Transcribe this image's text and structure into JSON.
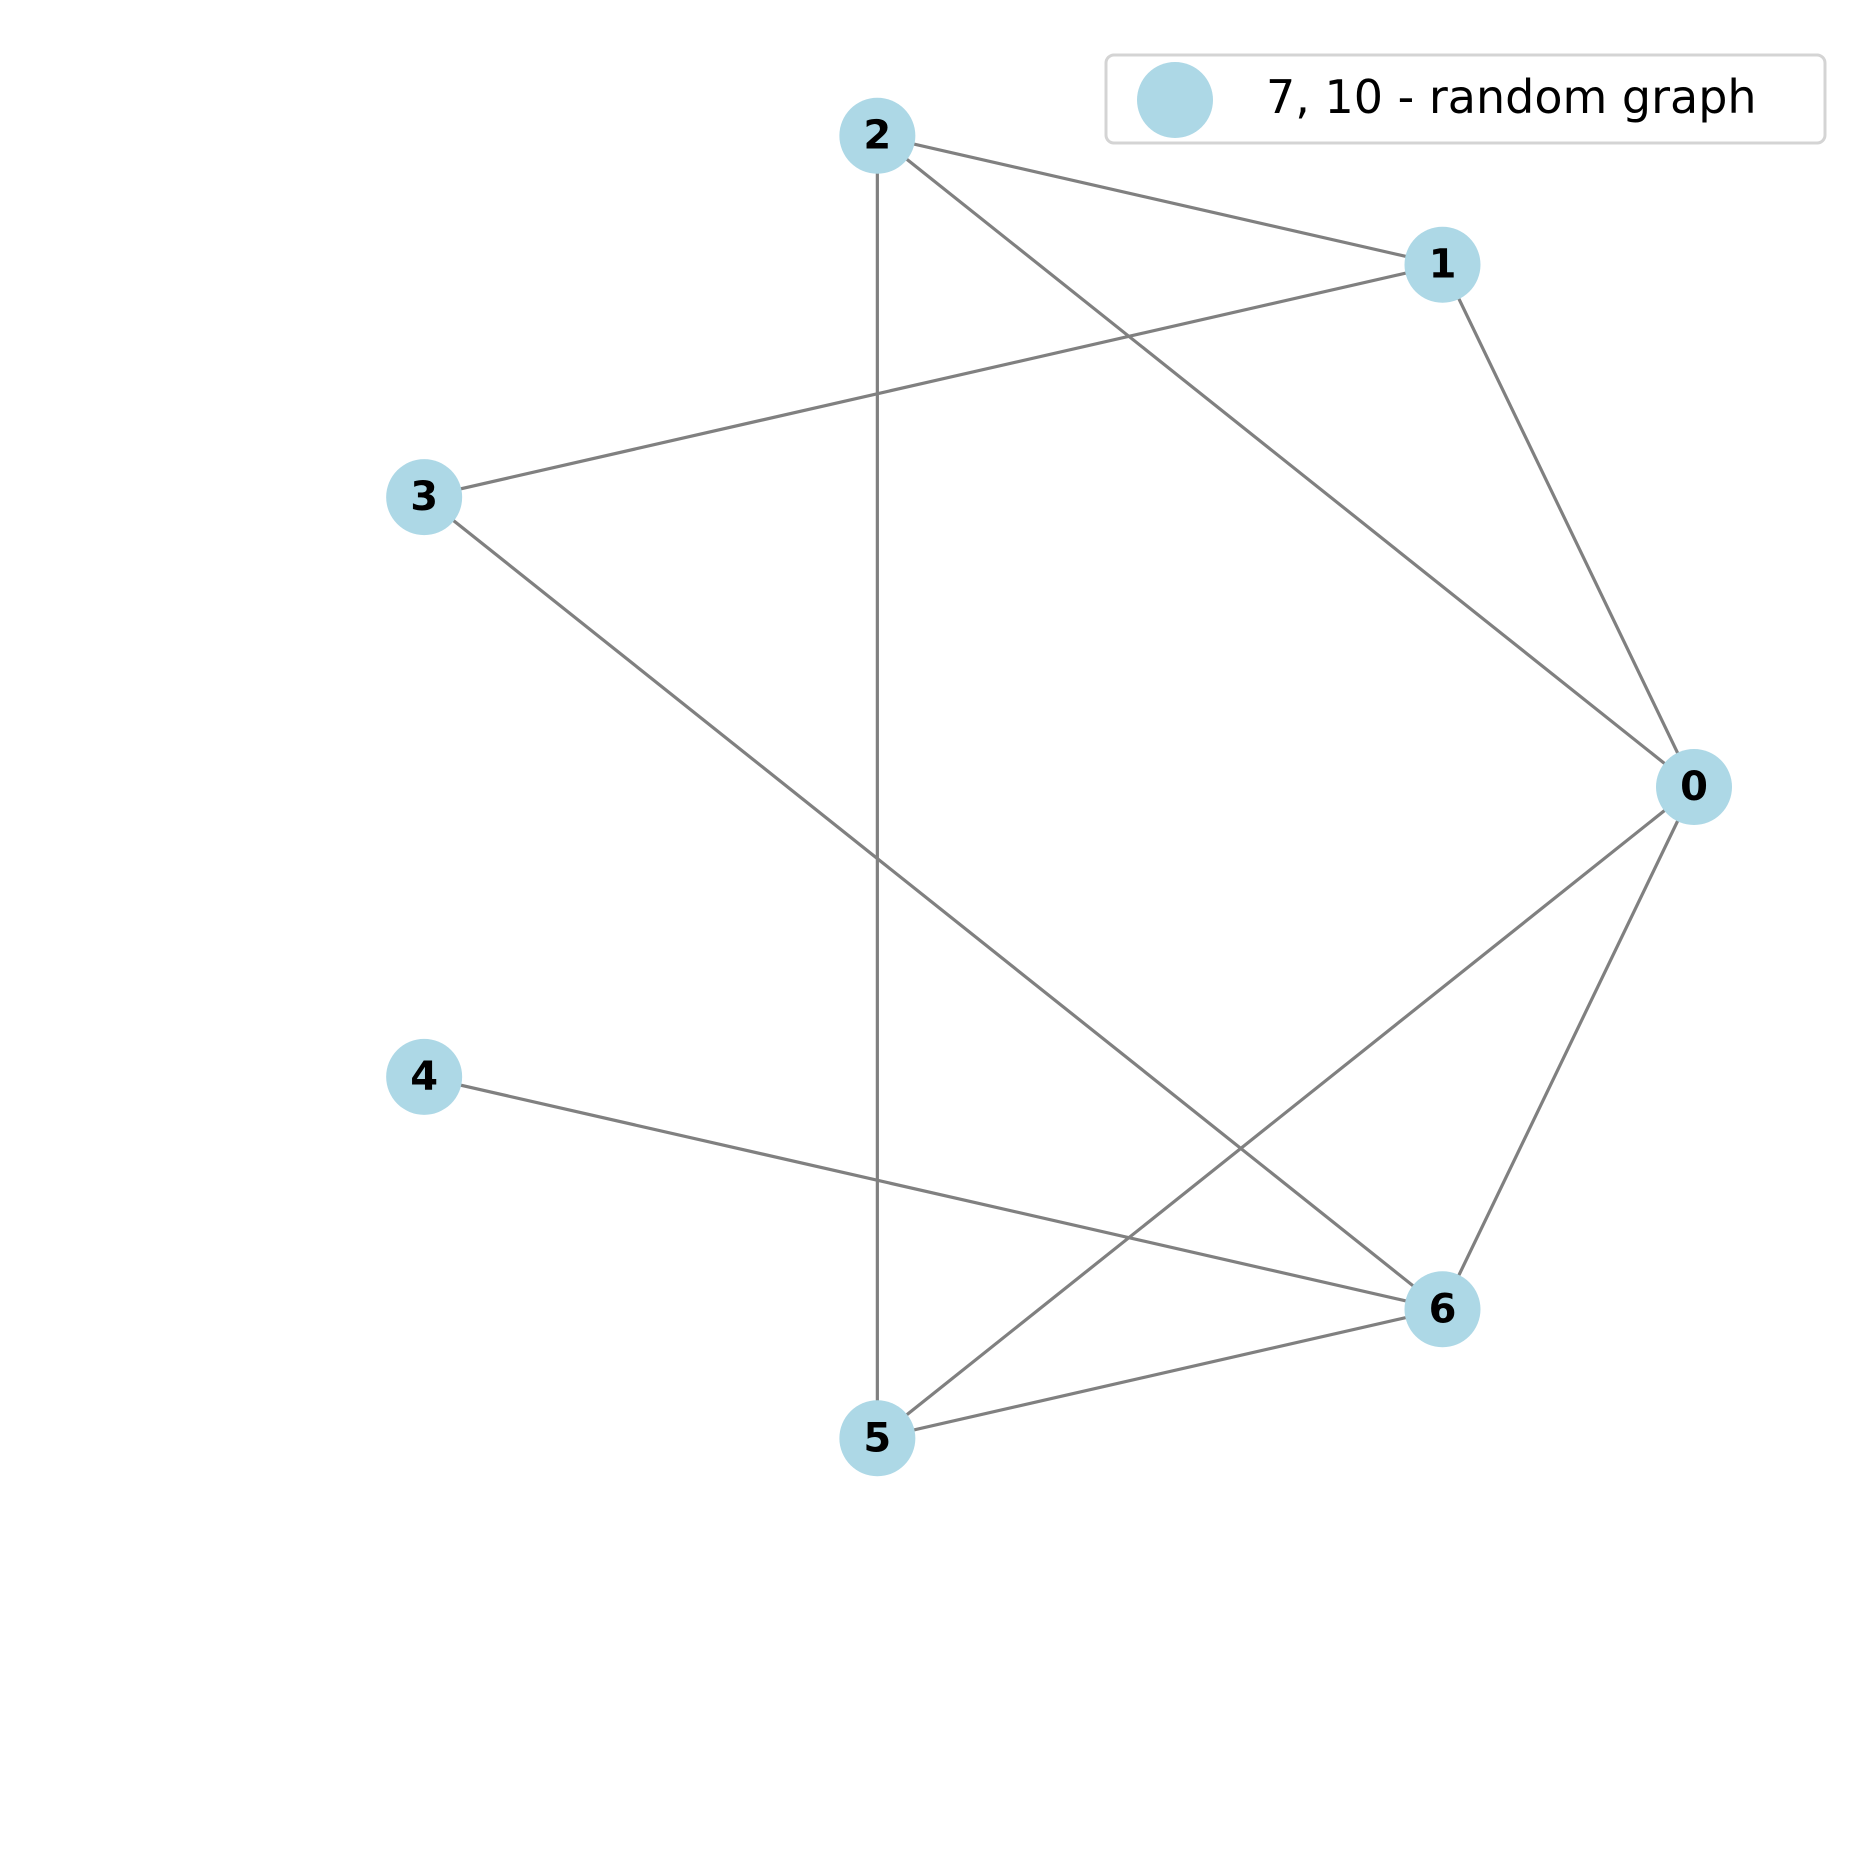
{
  "diagram": {
    "type": "network-graph",
    "layout": "circular",
    "node_color": "#add8e6",
    "edge_color": "#808080",
    "nodes": [
      {
        "id": "0",
        "label": "0"
      },
      {
        "id": "1",
        "label": "1"
      },
      {
        "id": "2",
        "label": "2"
      },
      {
        "id": "3",
        "label": "3"
      },
      {
        "id": "4",
        "label": "4"
      },
      {
        "id": "5",
        "label": "5"
      },
      {
        "id": "6",
        "label": "6"
      }
    ],
    "edges": [
      [
        "0",
        "1"
      ],
      [
        "0",
        "2"
      ],
      [
        "0",
        "5"
      ],
      [
        "0",
        "6"
      ],
      [
        "1",
        "2"
      ],
      [
        "1",
        "3"
      ],
      [
        "2",
        "5"
      ],
      [
        "3",
        "6"
      ],
      [
        "4",
        "6"
      ],
      [
        "5",
        "6"
      ]
    ],
    "legend": {
      "label": "7, 10 - random graph",
      "placement": "top-right"
    }
  }
}
